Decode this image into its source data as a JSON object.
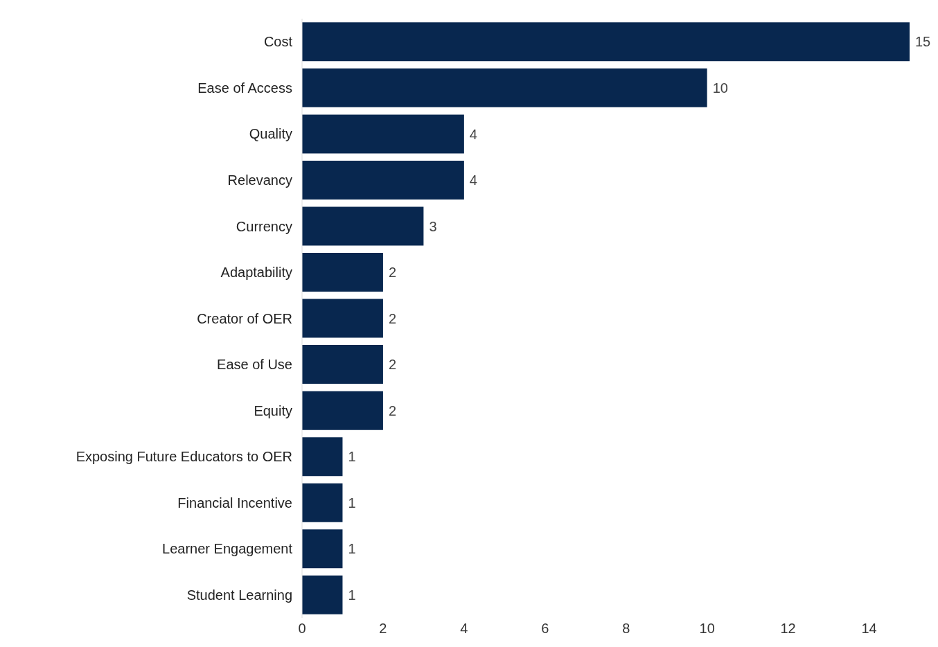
{
  "chart_data": {
    "type": "bar",
    "orientation": "horizontal",
    "categories": [
      "Cost",
      "Ease of Access",
      "Quality",
      "Relevancy",
      "Currency",
      "Adaptability",
      "Creator of OER",
      "Ease of Use",
      "Equity",
      "Exposing Future Educators to OER",
      "Financial Incentive",
      "Learner Engagement",
      "Student Learning"
    ],
    "values": [
      15,
      10,
      4,
      4,
      3,
      2,
      2,
      2,
      2,
      1,
      1,
      1,
      1
    ],
    "color": "#08274f",
    "xlim": [
      0,
      15
    ],
    "xticks": [
      0,
      2,
      4,
      6,
      8,
      10,
      12,
      14
    ],
    "grid": false,
    "data_labels": true
  }
}
